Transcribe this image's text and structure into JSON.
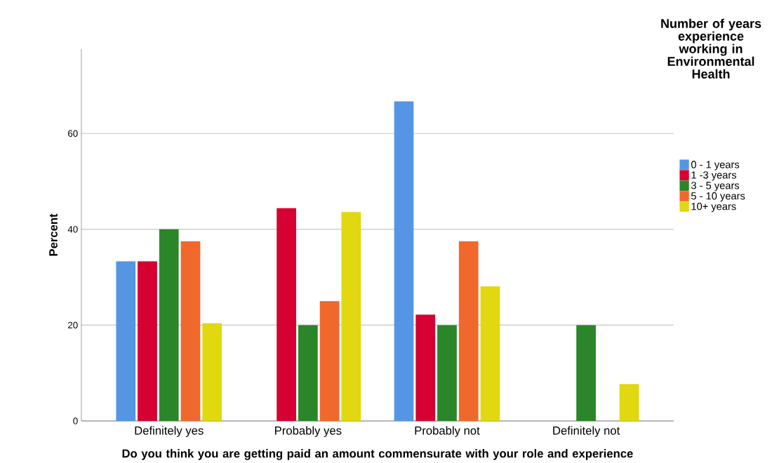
{
  "chart_data": {
    "type": "bar",
    "xlabel": "Do you think you are getting paid an amount commensurate with your role and experience",
    "ylabel": "Percent",
    "legend_title": "Number of years experience working in Environmental Health",
    "categories": [
      "Definitely yes",
      "Probably yes",
      "Probably not",
      "Definitely not"
    ],
    "series": [
      {
        "name": "0 - 1 years",
        "color": "#5596e4",
        "values": [
          33.3,
          null,
          66.7,
          null
        ]
      },
      {
        "name": "1 -3 years",
        "color": "#d60032",
        "values": [
          33.3,
          44.4,
          22.2,
          null
        ]
      },
      {
        "name": "3 - 5 years",
        "color": "#2a8629",
        "values": [
          40,
          20,
          20,
          20
        ]
      },
      {
        "name": "5 - 10 years",
        "color": "#f1682d",
        "values": [
          37.5,
          25,
          37.5,
          null
        ]
      },
      {
        "name": "10+ years",
        "color": "#e1d80f",
        "values": [
          20.4,
          43.6,
          28.1,
          7.7
        ]
      }
    ],
    "ylim": [
      0,
      77.6
    ],
    "yticks": [
      0,
      20,
      40,
      60
    ],
    "grid": "y",
    "legend": "right"
  }
}
